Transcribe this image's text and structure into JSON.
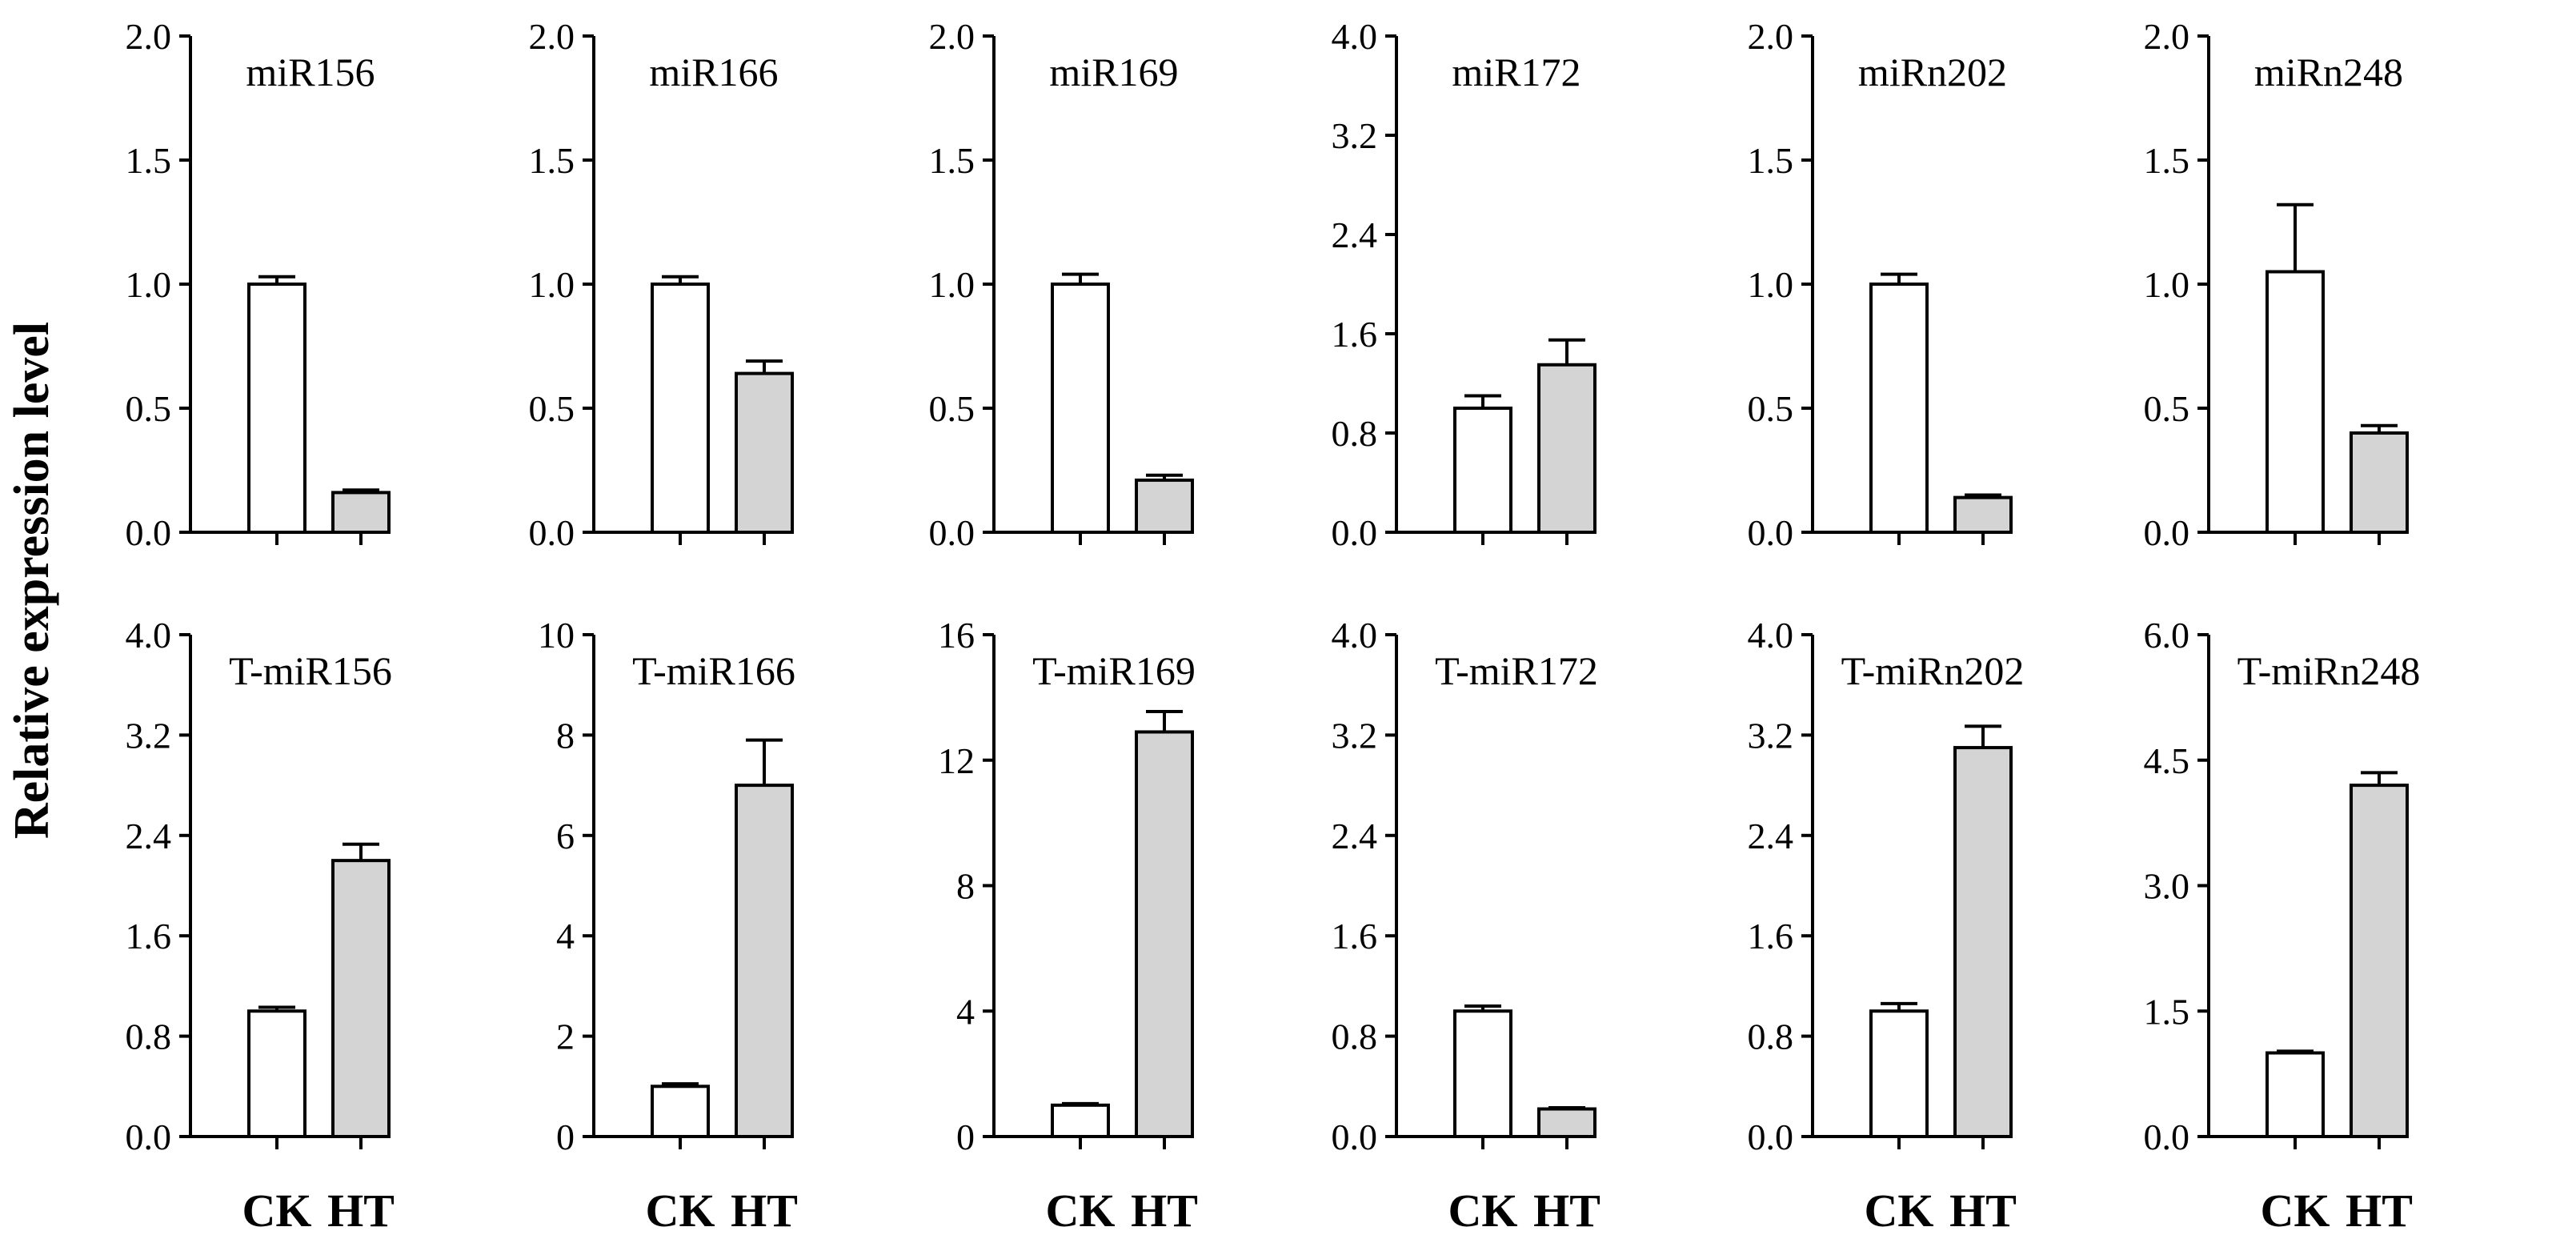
{
  "chart_data": {
    "type": "bar",
    "ylabel": "Relative expression level",
    "categories": [
      "CK",
      "HT"
    ],
    "colors": {
      "CK": "#ffffff",
      "HT": "#d4d4d4",
      "axis": "#000000"
    },
    "panels": [
      {
        "title": "miR156",
        "yticks": [
          "0.0",
          "0.5",
          "1.0",
          "1.5",
          "2.0"
        ],
        "ylim": [
          0,
          2.0
        ],
        "values": [
          1.0,
          0.16
        ],
        "errors": [
          0.03,
          0.01
        ]
      },
      {
        "title": "miR166",
        "yticks": [
          "0.0",
          "0.5",
          "1.0",
          "1.5",
          "2.0"
        ],
        "ylim": [
          0,
          2.0
        ],
        "values": [
          1.0,
          0.64
        ],
        "errors": [
          0.03,
          0.05
        ]
      },
      {
        "title": "miR169",
        "yticks": [
          "0.0",
          "0.5",
          "1.0",
          "1.5",
          "2.0"
        ],
        "ylim": [
          0,
          2.0
        ],
        "values": [
          1.0,
          0.21
        ],
        "errors": [
          0.04,
          0.02
        ]
      },
      {
        "title": "miR172",
        "yticks": [
          "0.0",
          "0.8",
          "1.6",
          "2.4",
          "3.2",
          "4.0"
        ],
        "ylim": [
          0,
          4.0
        ],
        "values": [
          1.0,
          1.35
        ],
        "errors": [
          0.1,
          0.2
        ]
      },
      {
        "title": "miRn202",
        "yticks": [
          "0.0",
          "0.5",
          "1.0",
          "1.5",
          "2.0"
        ],
        "ylim": [
          0,
          2.0
        ],
        "values": [
          1.0,
          0.14
        ],
        "errors": [
          0.04,
          0.01
        ]
      },
      {
        "title": "miRn248",
        "yticks": [
          "0.0",
          "0.5",
          "1.0",
          "1.5",
          "2.0"
        ],
        "ylim": [
          0,
          2.0
        ],
        "values": [
          1.05,
          0.4
        ],
        "errors": [
          0.27,
          0.03
        ]
      },
      {
        "title": "T-miR156",
        "yticks": [
          "0.0",
          "0.8",
          "1.6",
          "2.4",
          "3.2",
          "4.0"
        ],
        "ylim": [
          0,
          4.0
        ],
        "values": [
          1.0,
          2.2
        ],
        "errors": [
          0.03,
          0.13
        ]
      },
      {
        "title": "T-miR166",
        "yticks": [
          "0",
          "2",
          "4",
          "6",
          "8",
          "10"
        ],
        "ylim": [
          0,
          10
        ],
        "values": [
          1.0,
          7.0
        ],
        "errors": [
          0.05,
          0.9
        ]
      },
      {
        "title": "T-miR169",
        "yticks": [
          "0",
          "4",
          "8",
          "12",
          "16"
        ],
        "ylim": [
          0,
          16
        ],
        "values": [
          1.0,
          12.9
        ],
        "errors": [
          0.05,
          0.65
        ]
      },
      {
        "title": "T-miR172",
        "yticks": [
          "0.0",
          "0.8",
          "1.6",
          "2.4",
          "3.2",
          "4.0"
        ],
        "ylim": [
          0,
          4.0
        ],
        "values": [
          1.0,
          0.22
        ],
        "errors": [
          0.04,
          0.01
        ]
      },
      {
        "title": "T-miRn202",
        "yticks": [
          "0.0",
          "0.8",
          "1.6",
          "2.4",
          "3.2",
          "4.0"
        ],
        "ylim": [
          0,
          4.0
        ],
        "values": [
          1.0,
          3.1
        ],
        "errors": [
          0.06,
          0.17
        ]
      },
      {
        "title": "T-miRn248",
        "yticks": [
          "0.0",
          "1.5",
          "3.0",
          "4.5",
          "6.0"
        ],
        "ylim": [
          0,
          6.0
        ],
        "values": [
          1.0,
          4.2
        ],
        "errors": [
          0.02,
          0.15
        ]
      }
    ]
  }
}
